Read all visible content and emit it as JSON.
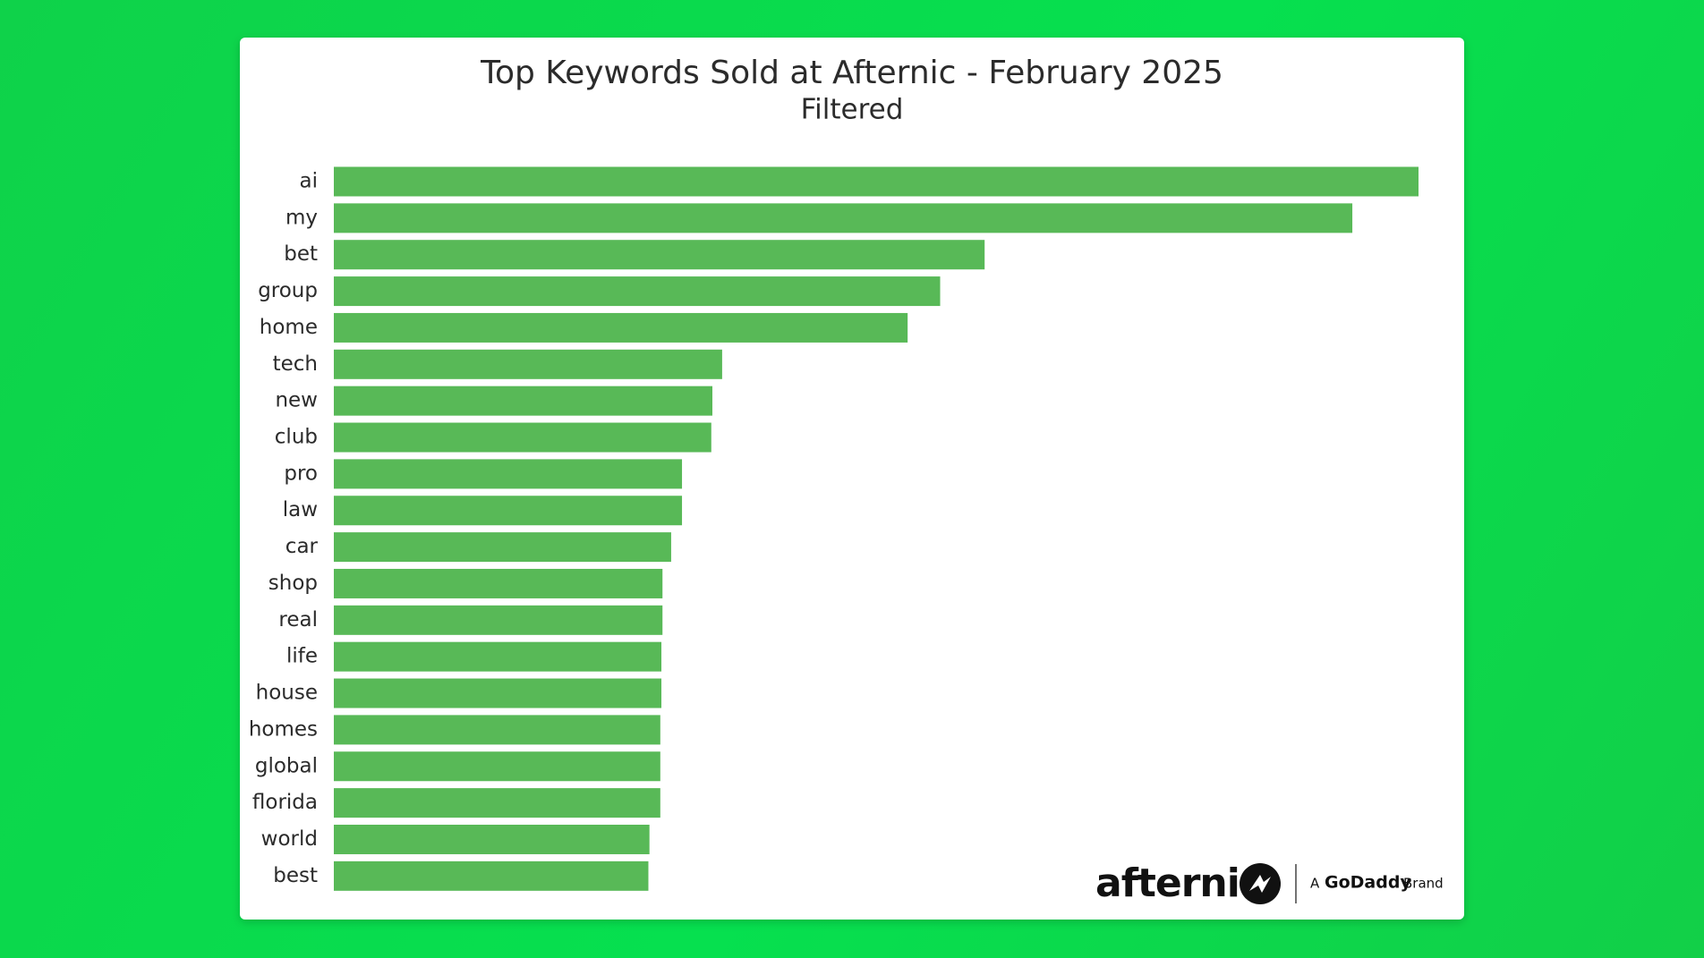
{
  "chart_data": {
    "type": "bar",
    "orientation": "horizontal",
    "title": "Top Keywords Sold at Afternic - February 2025",
    "subtitle": "Filtered",
    "categories": [
      "ai",
      "my",
      "bet",
      "group",
      "home",
      "tech",
      "new",
      "club",
      "pro",
      "law",
      "car",
      "shop",
      "real",
      "life",
      "house",
      "homes",
      "global",
      "florida",
      "world",
      "best"
    ],
    "values": [
      100,
      93.9,
      60.0,
      55.9,
      52.9,
      35.8,
      34.9,
      34.8,
      32.1,
      32.1,
      31.1,
      30.3,
      30.3,
      30.2,
      30.2,
      30.1,
      30.1,
      30.1,
      29.1,
      29.0
    ],
    "color": "#58b957",
    "xlim": [
      0,
      100
    ]
  },
  "branding": {
    "logo": "afternic",
    "tagline_prefix": "A",
    "tagline_brand": "GoDaddy",
    "tagline_suffix": "Brand"
  }
}
